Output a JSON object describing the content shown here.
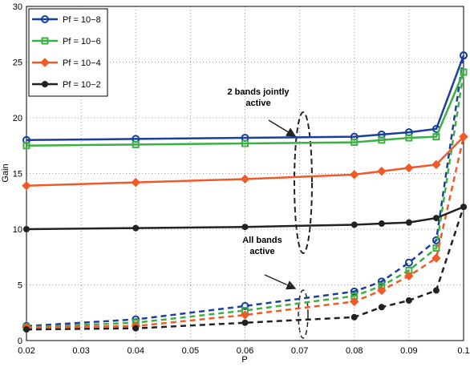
{
  "chart_data": {
    "type": "line",
    "x_label": "P",
    "y_label": "Gain",
    "x": [
      0.02,
      0.04,
      0.06,
      0.08,
      0.085,
      0.09,
      0.095,
      0.1
    ],
    "xlim": [
      0.02,
      0.1
    ],
    "xticks": [
      0.02,
      0.03,
      0.04,
      0.05,
      0.06,
      0.07,
      0.08,
      0.09,
      0.1
    ],
    "ylim": [
      0,
      30
    ],
    "yticks": [
      0,
      5,
      10,
      15,
      20,
      25,
      30
    ],
    "grid": true,
    "legend": "upper-left",
    "series": [
      {
        "name": "Pf = 10−8",
        "color": "#1c3f9e",
        "marker": "circle",
        "values": [
          18.0,
          18.1,
          18.2,
          18.3,
          18.5,
          18.7,
          19.0,
          25.6
        ],
        "all_bands_values": [
          1.3,
          1.9,
          3.1,
          4.4,
          5.3,
          7.0,
          9.0,
          25.6
        ]
      },
      {
        "name": "Pf = 10−6",
        "color": "#3cb043",
        "marker": "square",
        "values": [
          17.5,
          17.6,
          17.7,
          17.8,
          18.0,
          18.2,
          18.3,
          24.1
        ],
        "all_bands_values": [
          1.2,
          1.6,
          2.7,
          4.0,
          4.9,
          6.3,
          8.3,
          24.1
        ]
      },
      {
        "name": "Pf = 10−4",
        "color": "#f05a28",
        "marker": "diamond",
        "values": [
          13.9,
          14.2,
          14.5,
          14.9,
          15.2,
          15.5,
          15.8,
          18.3
        ],
        "all_bands_values": [
          1.2,
          1.3,
          2.3,
          3.5,
          4.5,
          5.8,
          7.4,
          18.3
        ]
      },
      {
        "name": "Pf = 10−2",
        "color": "#222222",
        "marker": "dot",
        "values": [
          10.0,
          10.1,
          10.2,
          10.4,
          10.5,
          10.6,
          11.0,
          12.0
        ],
        "all_bands_values": [
          1.0,
          1.1,
          1.6,
          2.1,
          3.0,
          3.6,
          4.5,
          12.0
        ]
      }
    ],
    "annotations": [
      [
        "2 bands jointly",
        "active"
      ],
      [
        "All bands",
        "active"
      ]
    ]
  }
}
